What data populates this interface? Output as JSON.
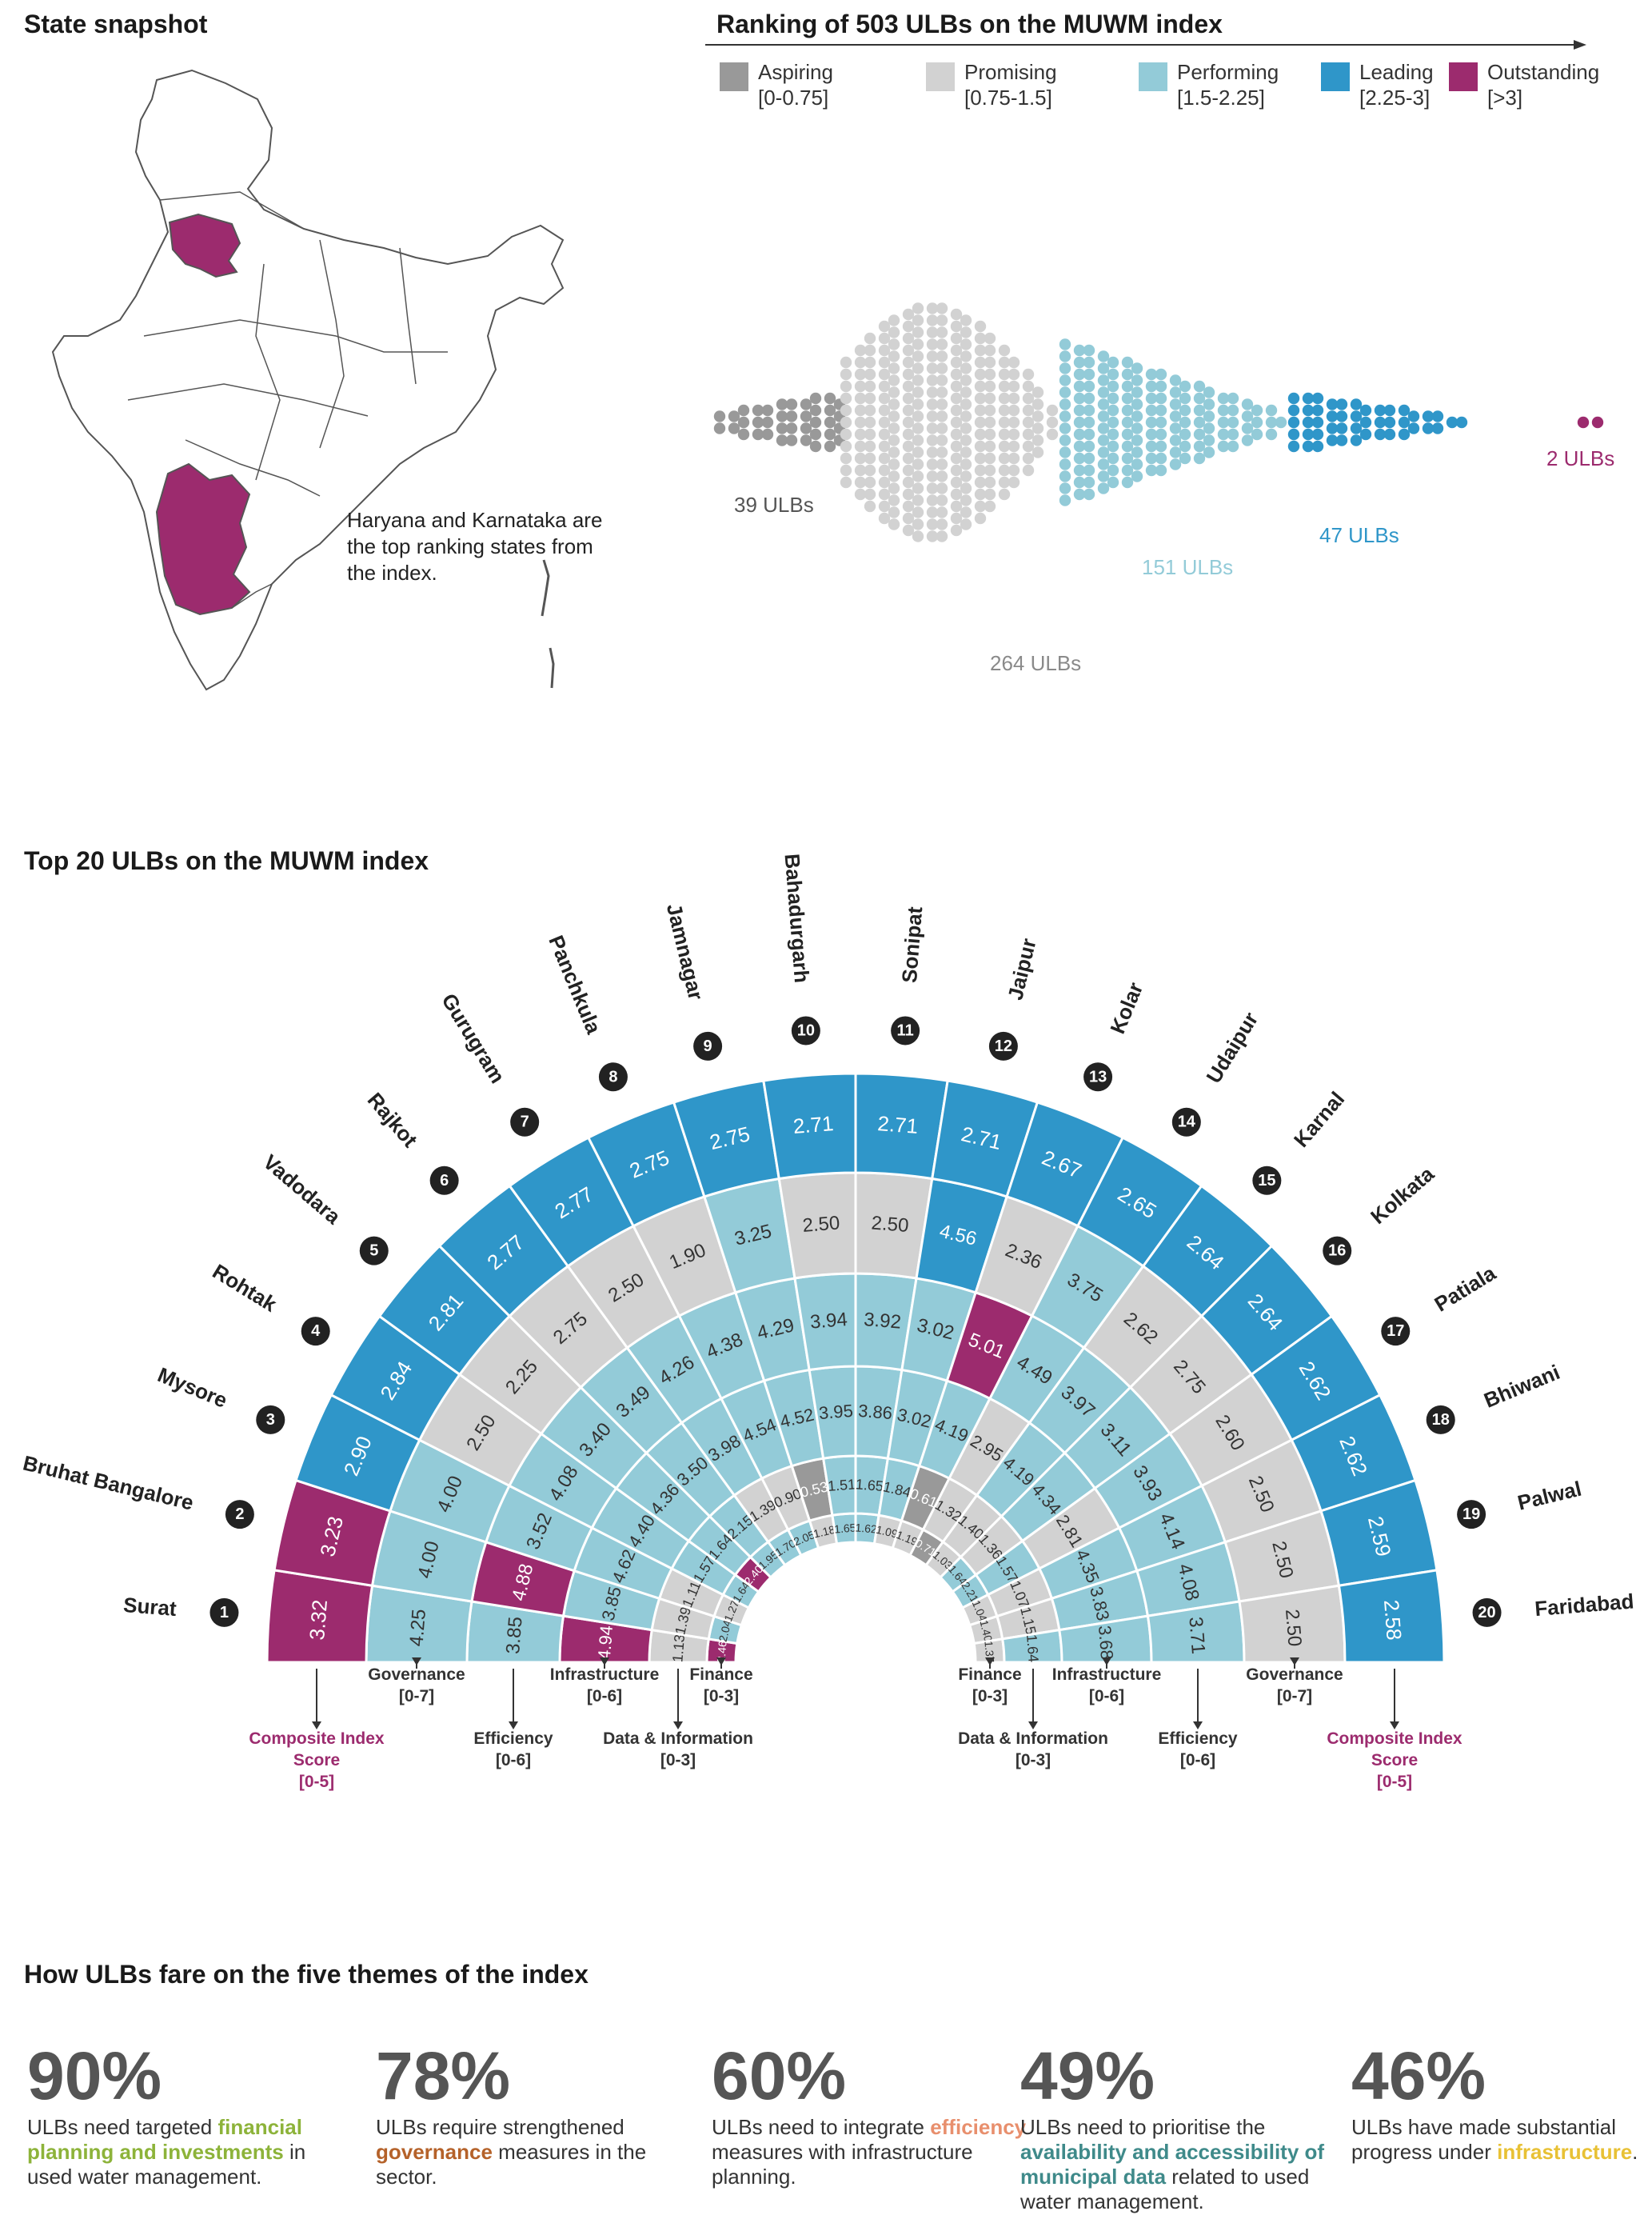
{
  "state_snapshot": {
    "title": "State snapshot",
    "note": "Haryana and Karnataka are the top ranking states from the index.",
    "highlight_color": "#9c2b6e"
  },
  "ranking": {
    "title": "Ranking of 503 ULBs on the MUWM index",
    "legend": [
      {
        "name": "Aspiring",
        "range": "[0-0.75]",
        "color": "#999999"
      },
      {
        "name": "Promising",
        "range": "[0.75-1.5]",
        "color": "#d2d2d2"
      },
      {
        "name": "Performing",
        "range": "[1.5-2.25]",
        "color": "#93cbd8"
      },
      {
        "name": "Leading",
        "range": "[2.25-3]",
        "color": "#2f96c9"
      },
      {
        "name": "Outstanding",
        "range": "[>3]",
        "color": "#9c2b6e"
      }
    ],
    "counts": [
      {
        "label": "39 ULBs",
        "count": 39,
        "color": "#555555"
      },
      {
        "label": "264 ULBs",
        "count": 264,
        "color": "#8a8a8a"
      },
      {
        "label": "151 ULBs",
        "count": 151,
        "color": "#93cbd8"
      },
      {
        "label": "47 ULBs",
        "count": 47,
        "color": "#2f96c9"
      },
      {
        "label": "2 ULBs",
        "count": 2,
        "color": "#9c2b6e"
      }
    ]
  },
  "top20": {
    "title": "Top 20 ULBs on the MUWM index",
    "left_keys": [
      {
        "name": "Composite Index",
        "name2": "Score",
        "range": "[0-5]"
      },
      {
        "name": "Governance",
        "range": "[0-7]"
      },
      {
        "name": "Efficiency",
        "range": "[0-6]"
      },
      {
        "name": "Infrastructure",
        "range": "[0-6]"
      },
      {
        "name": "Data & Information",
        "range": "[0-3]"
      },
      {
        "name": "Finance",
        "range": "[0-3]"
      }
    ],
    "right_keys": [
      {
        "name": "Finance",
        "range": "[0-3]"
      },
      {
        "name": "Data & Information",
        "range": "[0-3]"
      },
      {
        "name": "Infrastructure",
        "range": "[0-6]"
      },
      {
        "name": "Efficiency",
        "range": "[0-6]"
      },
      {
        "name": "Governance",
        "range": "[0-7]"
      },
      {
        "name": "Composite Index",
        "name2": "Score",
        "range": "[0-5]"
      }
    ]
  },
  "chart_data": {
    "type": "table",
    "title": "Top 20 ULBs on the MUWM index",
    "columns": [
      "Rank",
      "ULB",
      "Composite Index Score",
      "Governance",
      "Efficiency",
      "Infrastructure",
      "Data & Information",
      "Finance"
    ],
    "rows": [
      {
        "rank": 1,
        "name": "Surat",
        "composite": 3.32,
        "governance": 4.25,
        "efficiency": 3.85,
        "infrastructure": 4.94,
        "data": 1.13,
        "finance": 2.46
      },
      {
        "rank": 2,
        "name": "Bruhat Bangalore",
        "composite": 3.23,
        "governance": 4.0,
        "efficiency": 4.88,
        "infrastructure": 3.85,
        "data": 1.39,
        "finance": 2.04
      },
      {
        "rank": 3,
        "name": "Mysore",
        "composite": 2.9,
        "governance": 4.0,
        "efficiency": 3.52,
        "infrastructure": 4.62,
        "data": 1.11,
        "finance": 1.27
      },
      {
        "rank": 4,
        "name": "Rohtak",
        "composite": 2.84,
        "governance": 2.5,
        "efficiency": 4.08,
        "infrastructure": 4.4,
        "data": 1.57,
        "finance": 1.64
      },
      {
        "rank": 5,
        "name": "Vadodara",
        "composite": 2.81,
        "governance": 2.25,
        "efficiency": 3.4,
        "infrastructure": 4.36,
        "data": 1.64,
        "finance": 2.4
      },
      {
        "rank": 6,
        "name": "Rajkot",
        "composite": 2.77,
        "governance": 2.75,
        "efficiency": 3.49,
        "infrastructure": 3.5,
        "data": 2.15,
        "finance": 1.95
      },
      {
        "rank": 7,
        "name": "Gurugram",
        "composite": 2.77,
        "governance": 2.5,
        "efficiency": 4.26,
        "infrastructure": 3.98,
        "data": 1.39,
        "finance": 1.7
      },
      {
        "rank": 8,
        "name": "Panchkula",
        "composite": 2.75,
        "governance": 1.9,
        "efficiency": 4.38,
        "infrastructure": 4.54,
        "data": 0.9,
        "finance": 2.05
      },
      {
        "rank": 9,
        "name": "Jamnagar",
        "composite": 2.75,
        "governance": 3.25,
        "efficiency": 4.29,
        "infrastructure": 4.52,
        "data": 0.53,
        "finance": 1.18
      },
      {
        "rank": 10,
        "name": "Bahadurgarh",
        "composite": 2.71,
        "governance": 2.5,
        "efficiency": 3.94,
        "infrastructure": 3.95,
        "data": 1.51,
        "finance": 1.65
      },
      {
        "rank": 11,
        "name": "Sonipat",
        "composite": 2.71,
        "governance": 2.5,
        "efficiency": 3.92,
        "infrastructure": 3.86,
        "data": 1.65,
        "finance": 1.62
      },
      {
        "rank": 12,
        "name": "Jaipur",
        "composite": 2.71,
        "governance": 4.56,
        "efficiency": 3.02,
        "infrastructure": 3.02,
        "data": 1.84,
        "finance": 1.09
      },
      {
        "rank": 13,
        "name": "Kolar",
        "composite": 2.67,
        "governance": 2.36,
        "efficiency": 5.01,
        "infrastructure": 4.19,
        "data": 0.61,
        "finance": 1.19
      },
      {
        "rank": 14,
        "name": "Udaipur",
        "composite": 2.65,
        "governance": 3.75,
        "efficiency": 4.49,
        "infrastructure": 2.95,
        "data": 1.32,
        "finance": 0.71
      },
      {
        "rank": 15,
        "name": "Karnal",
        "composite": 2.64,
        "governance": 2.62,
        "efficiency": 3.97,
        "infrastructure": 4.19,
        "data": 1.4,
        "finance": 1.03
      },
      {
        "rank": 16,
        "name": "Kolkata",
        "composite": 2.64,
        "governance": 2.75,
        "efficiency": 3.11,
        "infrastructure": 4.34,
        "data": 1.36,
        "finance": 1.64
      },
      {
        "rank": 17,
        "name": "Patiala",
        "composite": 2.62,
        "governance": 2.6,
        "efficiency": 3.93,
        "infrastructure": 2.81,
        "data": 1.57,
        "finance": 2.21
      },
      {
        "rank": 18,
        "name": "Bhiwani",
        "composite": 2.62,
        "governance": 2.5,
        "efficiency": 4.14,
        "infrastructure": 4.35,
        "data": 1.07,
        "finance": 1.04
      },
      {
        "rank": 19,
        "name": "Palwal",
        "composite": 2.59,
        "governance": 2.5,
        "efficiency": 4.08,
        "infrastructure": 3.83,
        "data": 1.15,
        "finance": 1.4
      },
      {
        "rank": 20,
        "name": "Faridabad",
        "composite": 2.58,
        "governance": 2.5,
        "efficiency": 3.71,
        "infrastructure": 3.68,
        "data": 1.64,
        "finance": 1.37
      }
    ]
  },
  "themes": {
    "title": "How ULBs fare on the five themes of the index",
    "stats": [
      {
        "pct": "90%",
        "pre": "ULBs need targeted ",
        "hl": "financial planning and investments",
        "post": " in used water management.",
        "color": "#8db33a"
      },
      {
        "pct": "78%",
        "pre": "ULBs require strengthened ",
        "hl": "governance",
        "post": " measures in the sector.",
        "color": "#b5622a"
      },
      {
        "pct": "60%",
        "pre": "ULBs need to integrate ",
        "hl": "efficiency",
        "post": " measures with infrastructure planning.",
        "color": "#e88f6d"
      },
      {
        "pct": "49%",
        "pre": "ULBs need to prioritise the ",
        "hl": "availability and accessibility of municipal data",
        "post": " related to used water management.",
        "color": "#3f8a8a"
      },
      {
        "pct": "46%",
        "pre": "ULBs have made substantial progress under ",
        "hl": "infrastructure",
        "post": ".",
        "color": "#e8c135"
      }
    ]
  }
}
